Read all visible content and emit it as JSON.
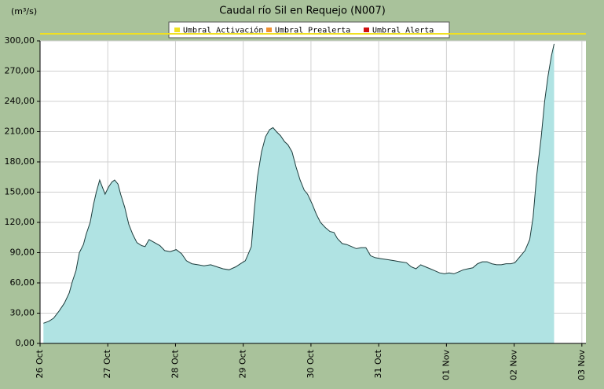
{
  "chart_data": {
    "type": "area",
    "title": "Caudal río Sil en Requejo  (N007)",
    "y_label": "(m³/s)",
    "series": [
      {
        "name": "Caudal",
        "color": "#b0e3e3",
        "line_color": "#1e3c3c",
        "x": [
          0.05,
          0.13,
          0.2,
          0.28,
          0.36,
          0.43,
          0.48,
          0.53,
          0.58,
          0.64,
          0.68,
          0.74,
          0.79,
          0.83,
          0.88,
          0.92,
          0.96,
          1.01,
          1.06,
          1.1,
          1.15,
          1.19,
          1.25,
          1.31,
          1.37,
          1.43,
          1.5,
          1.55,
          1.61,
          1.69,
          1.77,
          1.84,
          1.92,
          2.01,
          2.09,
          2.16,
          2.24,
          2.33,
          2.42,
          2.52,
          2.61,
          2.7,
          2.79,
          2.89,
          2.96,
          3.03,
          3.07,
          3.12,
          3.16,
          3.21,
          3.27,
          3.33,
          3.39,
          3.44,
          3.49,
          3.55,
          3.61,
          3.66,
          3.72,
          3.78,
          3.84,
          3.9,
          3.95,
          4.02,
          4.08,
          4.14,
          4.21,
          4.28,
          4.34,
          4.39,
          4.46,
          4.53,
          4.6,
          4.67,
          4.74,
          4.81,
          4.88,
          4.95,
          5.04,
          5.14,
          5.23,
          5.32,
          5.41,
          5.48,
          5.55,
          5.62,
          5.69,
          5.76,
          5.83,
          5.9,
          5.97,
          6.04,
          6.11,
          6.18,
          6.25,
          6.32,
          6.39,
          6.46,
          6.53,
          6.6,
          6.67,
          6.74,
          6.81,
          6.88,
          6.95,
          7.01,
          7.06,
          7.11,
          7.16,
          7.23,
          7.28,
          7.33,
          7.4,
          7.45,
          7.5,
          7.55,
          7.59
        ],
        "values": [
          20,
          22,
          25,
          32,
          40,
          50,
          62,
          72,
          90,
          98,
          108,
          120,
          138,
          150,
          162,
          155,
          148,
          155,
          160,
          162,
          158,
          148,
          135,
          118,
          108,
          100,
          97,
          96,
          103,
          100,
          97,
          92,
          91,
          93,
          89,
          82,
          79,
          78,
          77,
          78,
          76,
          74,
          73,
          76,
          79,
          82,
          88,
          96,
          130,
          165,
          190,
          205,
          212,
          214,
          210,
          206,
          200,
          197,
          190,
          175,
          162,
          152,
          148,
          138,
          128,
          120,
          115,
          111,
          110,
          104,
          99,
          98,
          96,
          94,
          95,
          95,
          87,
          85,
          84,
          83,
          82,
          81,
          80,
          76,
          74,
          78,
          76,
          74,
          72,
          70,
          69,
          70,
          69,
          71,
          73,
          74,
          75,
          79,
          81,
          81,
          79,
          78,
          78,
          79,
          79,
          80,
          84,
          88,
          92,
          103,
          125,
          165,
          205,
          240,
          265,
          285,
          297
        ]
      }
    ],
    "thresholds": [
      {
        "name": "Umbral Activación",
        "color": "#f0e020",
        "value": 307
      },
      {
        "name": "Umbral Prealerta",
        "color": "#f09030"
      },
      {
        "name": "Umbral Alerta",
        "color": "#d01010"
      }
    ],
    "xlim": [
      0,
      8.06
    ],
    "xticks": [
      {
        "value": 0,
        "label": "26 Oct"
      },
      {
        "value": 1,
        "label": "27 Oct"
      },
      {
        "value": 2,
        "label": "28 Oct"
      },
      {
        "value": 3,
        "label": "29 Oct"
      },
      {
        "value": 4,
        "label": "30 Oct"
      },
      {
        "value": 5,
        "label": "31 Oct"
      },
      {
        "value": 6,
        "label": "01 Nov"
      },
      {
        "value": 7,
        "label": "02 Nov"
      },
      {
        "value": 8,
        "label": "03 Nov"
      }
    ],
    "ylim": [
      0,
      300
    ],
    "yticks": [
      {
        "value": 0,
        "label": "0,00"
      },
      {
        "value": 30,
        "label": "30,00"
      },
      {
        "value": 60,
        "label": "60,00"
      },
      {
        "value": 90,
        "label": "90,00"
      },
      {
        "value": 120,
        "label": "120,00"
      },
      {
        "value": 150,
        "label": "150,00"
      },
      {
        "value": 180,
        "label": "180,00"
      },
      {
        "value": 210,
        "label": "210,00"
      },
      {
        "value": 240,
        "label": "240,00"
      },
      {
        "value": 270,
        "label": "270,00"
      },
      {
        "value": 300,
        "label": "300,00"
      }
    ],
    "grid": true
  }
}
